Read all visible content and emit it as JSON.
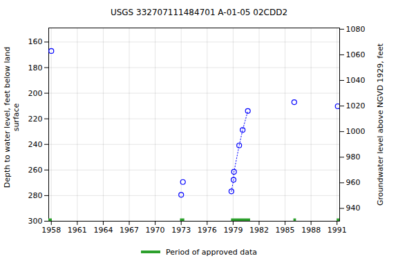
{
  "chart_data": {
    "type": "scatter",
    "title": "USGS 332707111484701 A-01-05 02CDD2",
    "y_label": "Depth to water level, feet below land\nsurface",
    "y2_label": "Groundwater level above NGVD 1929, feet",
    "x": [
      1958.0,
      1973.0,
      1973.2,
      1978.8,
      1979.05,
      1979.1,
      1979.7,
      1980.1,
      1980.7,
      1986.06,
      1991.08
    ],
    "series": [
      {
        "type": "scatter",
        "marker": "circle_open",
        "color": "#0000ff",
        "values": [
          167,
          279.4,
          269.4,
          276.7,
          267.7,
          261.4,
          240.8,
          228.7,
          213.9,
          207.0,
          210.2
        ]
      },
      {
        "type": "line",
        "line_style": "dotted",
        "color": "#0000ff",
        "values": [
          null,
          null,
          null,
          276.7,
          267.7,
          261.4,
          240.8,
          228.7,
          213.9,
          null,
          null
        ]
      }
    ],
    "approved_periods": {
      "name": "Period of approved data",
      "color": "#2ca02c",
      "ranges": [
        [
          1957.7,
          1958.1
        ],
        [
          1972.9,
          1973.4
        ],
        [
          1978.8,
          1981.0
        ],
        [
          1986.0,
          1986.3
        ],
        [
          1991.0,
          1991.3
        ]
      ]
    },
    "xlim": [
      1957.7,
      1991.3
    ],
    "xticks": [
      1958,
      1961,
      1964,
      1967,
      1970,
      1973,
      1976,
      1979,
      1982,
      1985,
      1988,
      1991
    ],
    "ylim": [
      149,
      300
    ],
    "yticks": [
      160,
      180,
      200,
      220,
      240,
      260,
      280,
      300
    ],
    "y2lim": [
      930,
      1081
    ],
    "y2ticks": [
      940,
      960,
      980,
      1000,
      1020,
      1040,
      1060,
      1080
    ],
    "grid": true,
    "legend": "bottom"
  }
}
